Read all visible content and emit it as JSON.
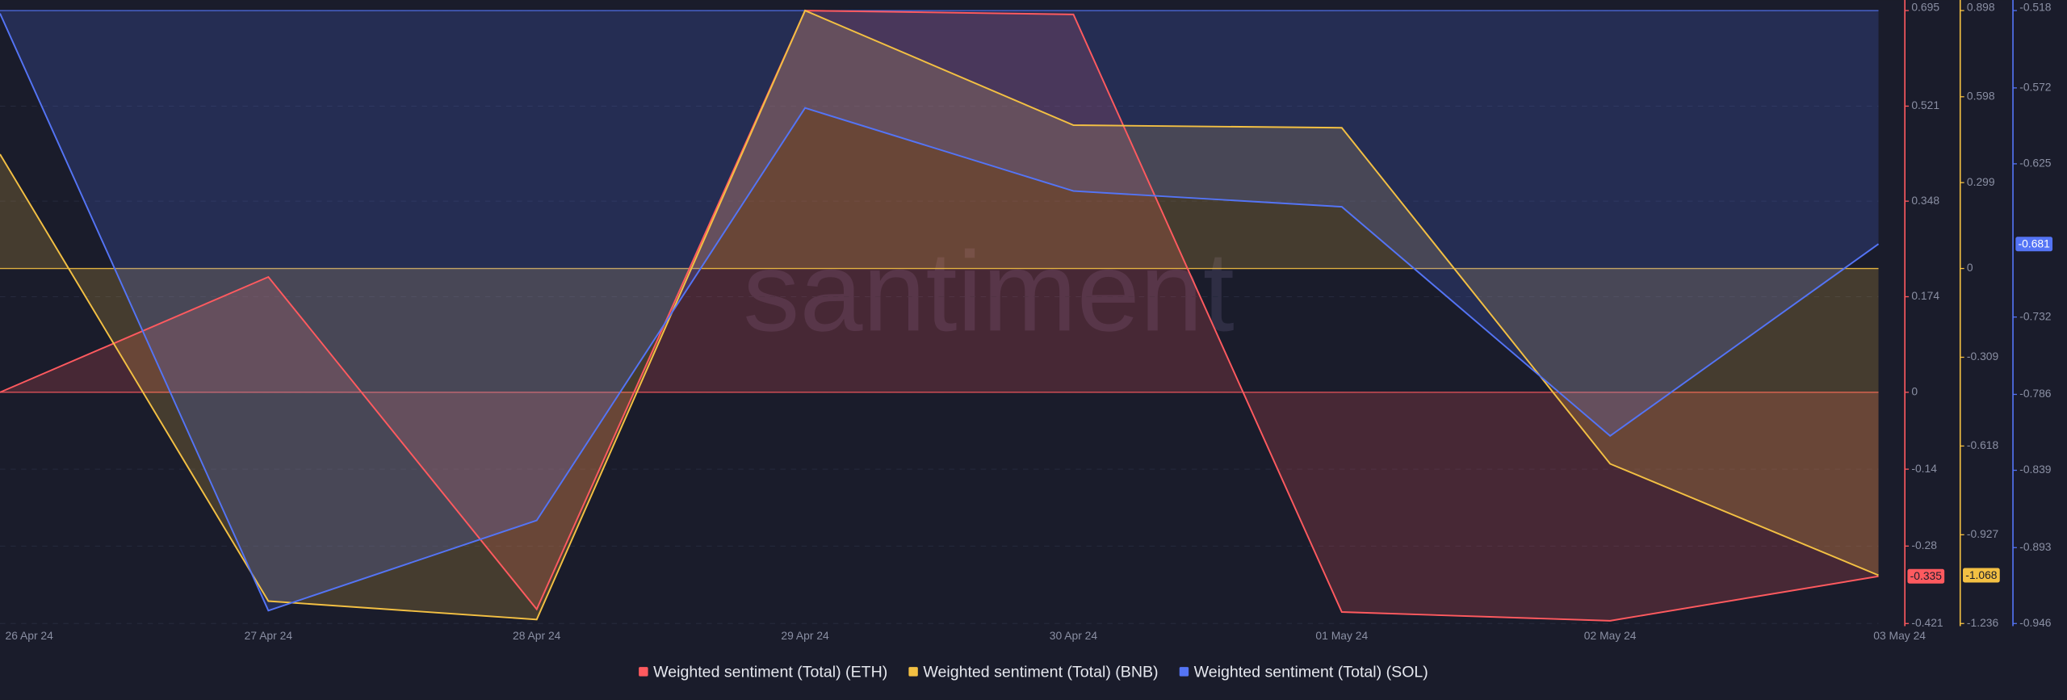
{
  "chart_data": {
    "type": "line",
    "watermark": "santiment",
    "categories": [
      "26 Apr 24",
      "27 Apr 24",
      "28 Apr 24",
      "29 Apr 24",
      "30 Apr 24",
      "01 May 24",
      "02 May 24",
      "03 May 24"
    ],
    "grid": true,
    "series": [
      {
        "name": "Weighted sentiment (Total) (ETH)",
        "color": "#ff5a5f",
        "values": [
          0,
          0.21,
          -0.395,
          0.695,
          0.688,
          -0.4,
          -0.416,
          -0.335
        ],
        "ylim": [
          -0.421,
          0.695
        ],
        "yticks": [
          0.695,
          0.521,
          0.348,
          0.174,
          0,
          -0.14,
          -0.28,
          -0.421
        ]
      },
      {
        "name": "Weighted sentiment (Total) (BNB)",
        "color": "#f3c043",
        "values": [
          0.398,
          -1.158,
          -1.222,
          0.898,
          0.499,
          0.49,
          -0.68,
          -1.068
        ],
        "ylim": [
          -1.236,
          0.898
        ],
        "yticks": [
          0.898,
          0.598,
          0.299,
          0,
          -0.309,
          -0.618,
          -0.927,
          -1.236
        ]
      },
      {
        "name": "Weighted sentiment (Total) (SOL)",
        "color": "#5474f5",
        "values": [
          -0.52,
          -0.937,
          -0.874,
          -0.586,
          -0.644,
          -0.655,
          -0.815,
          -0.681
        ],
        "ylim": [
          -0.946,
          -0.518
        ],
        "yticks": [
          -0.518,
          -0.572,
          -0.625,
          -0.732,
          -0.786,
          -0.839,
          -0.893,
          -0.946
        ]
      }
    ]
  }
}
